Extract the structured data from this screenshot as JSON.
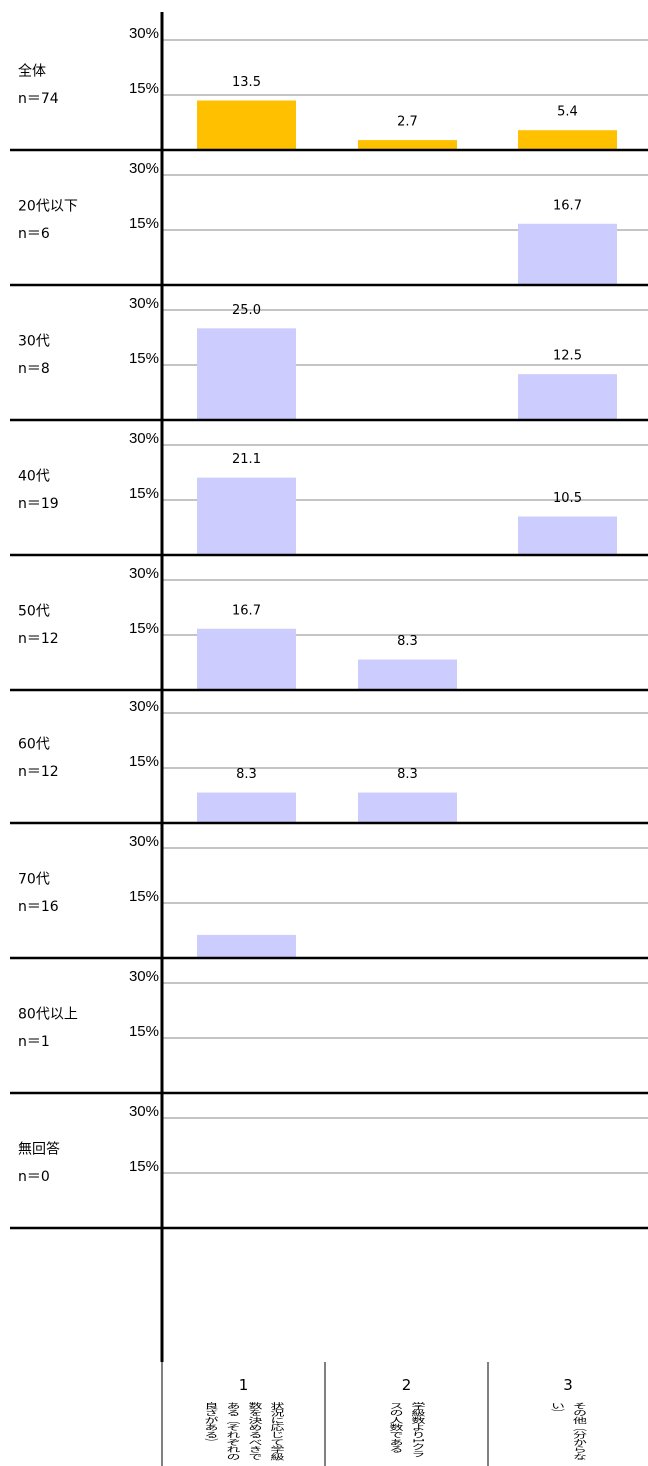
{
  "chart_data": {
    "type": "bar",
    "categories": [
      "1",
      "2",
      "3"
    ],
    "category_descriptions": [
      "状況に応じて学級数を決めるべきである（それぞれの良さがある）",
      "学級数より1クラスの人数である",
      "その他（分からない）"
    ],
    "ylim": [
      0,
      37
    ],
    "yticks": [
      {
        "value": 15,
        "label": "15%"
      },
      {
        "value": 30,
        "label": "30%"
      }
    ],
    "grid": true,
    "panels": [
      {
        "group": "全体",
        "n": "n＝74",
        "color": "#ffc000",
        "values": [
          13.5,
          2.7,
          5.4
        ],
        "value_labels": [
          "13.5",
          "2.7",
          "5.4"
        ]
      },
      {
        "group": "20代以下",
        "n": "n＝6",
        "color": "#ccccff",
        "values": [
          0,
          0,
          16.7
        ],
        "value_labels": [
          null,
          null,
          "16.7"
        ]
      },
      {
        "group": "30代",
        "n": "n＝8",
        "color": "#ccccff",
        "values": [
          25.0,
          0,
          12.5
        ],
        "value_labels": [
          "25.0",
          null,
          "12.5"
        ]
      },
      {
        "group": "40代",
        "n": "n＝19",
        "color": "#ccccff",
        "values": [
          21.1,
          0,
          10.5
        ],
        "value_labels": [
          "21.1",
          null,
          "10.5"
        ]
      },
      {
        "group": "50代",
        "n": "n＝12",
        "color": "#ccccff",
        "values": [
          16.7,
          8.3,
          0
        ],
        "value_labels": [
          "16.7",
          "8.3",
          null
        ]
      },
      {
        "group": "60代",
        "n": "n＝12",
        "color": "#ccccff",
        "values": [
          8.3,
          8.3,
          0
        ],
        "value_labels": [
          "8.3",
          "8.3",
          null
        ]
      },
      {
        "group": "70代",
        "n": "n＝16",
        "color": "#ccccff",
        "values": [
          6.3,
          0,
          0
        ],
        "value_labels": [
          null,
          null,
          null
        ]
      },
      {
        "group": "80代以上",
        "n": "n＝1",
        "color": "#ccccff",
        "values": [
          0,
          0,
          0
        ],
        "value_labels": [
          null,
          null,
          null
        ]
      },
      {
        "group": "無回答",
        "n": "n＝0",
        "color": "#ccccff",
        "values": [
          0,
          0,
          0
        ],
        "value_labels": [
          null,
          null,
          null
        ]
      }
    ]
  }
}
